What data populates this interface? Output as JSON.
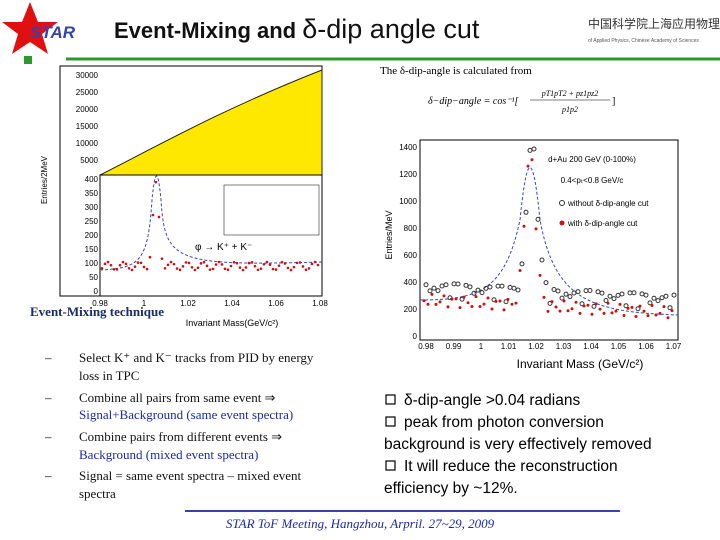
{
  "header": {
    "logo": "STAR",
    "title_a": "Event-Mixing and ",
    "title_b": "δ-dip angle cut",
    "institute": "中国科学院上海应用物理研究所",
    "institute_en": "of Applied Physics, Chinese Academy of Sciences"
  },
  "left_plot": {
    "y_label": "Entries/2MeV",
    "x_label": "Invariant Mass(GeV/c²)",
    "yticks_upper": [
      "30000",
      "25000",
      "20000",
      "15000",
      "10000",
      "5000"
    ],
    "yticks_lower": [
      "400",
      "350",
      "300",
      "250",
      "200",
      "150",
      "100",
      "50",
      "0"
    ],
    "xticks": [
      "0.98",
      "1",
      "1.02",
      "1.04",
      "1.06",
      "1.08"
    ],
    "legend": "φ → K⁺ + K⁻"
  },
  "formula": {
    "intro": "The δ-dip-angle is calculated from",
    "lhs": "δ−dip−angle = cos⁻¹[",
    "numerator": "pT1pT2 + pz1pz2",
    "denominator": "p1p2",
    "rhs": "]"
  },
  "right_plot": {
    "y_label": "Entries/MeV",
    "x_label": "Invariant Mass (GeV/c²)",
    "yticks": [
      "1400",
      "1200",
      "1000",
      "800",
      "600",
      "400",
      "200",
      "0"
    ],
    "xticks": [
      "0.98",
      "0.99",
      "1",
      "1.01",
      "1.02",
      "1.03",
      "1.04",
      "1.05",
      "1.06",
      "1.07"
    ],
    "annotations": [
      "d+Au 200 GeV (0-100%)",
      "0.4<pₜ<0.8 GeV/c"
    ],
    "legend": [
      "without δ-dip-angle cut",
      "with δ-dip-angle cut"
    ]
  },
  "technique": {
    "heading": "Event-Mixing technique",
    "items": [
      [
        "Select K⁺ and K⁻ tracks from PID by energy",
        "loss in TPC"
      ],
      [
        "Combine all pairs from same event ⇒",
        "Signal+Background (same event spectra)"
      ],
      [
        "Combine pairs from different events ⇒",
        "Background (mixed event spectra)"
      ],
      [
        "Signal = same event spectra – mixed event",
        "spectra"
      ]
    ],
    "bullet": "–"
  },
  "notes": {
    "lines": [
      "δ-dip-angle >0.04 radians",
      "peak from photon conversion",
      "background is very effectively removed",
      "It will reduce the  reconstruction",
      "efficiency by ~12%."
    ]
  },
  "footer": "STAR ToF Meeting, Hangzhou, Arpril. 27~29, 2009"
}
